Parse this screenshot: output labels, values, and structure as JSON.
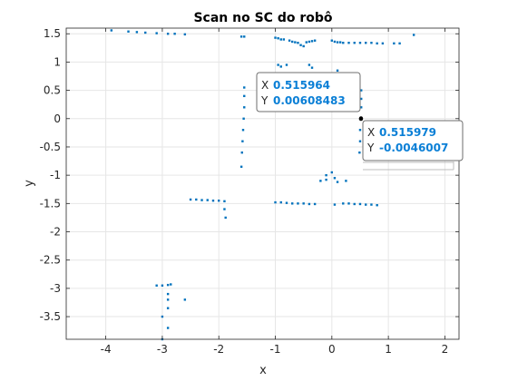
{
  "chart_data": {
    "type": "scatter",
    "title": "Scan no SC do robô",
    "xlabel": "x",
    "ylabel": "y",
    "xlim": [
      -4.7,
      2.25
    ],
    "ylim": [
      -3.9,
      1.6
    ],
    "xticks": [
      -4,
      -3,
      -2,
      -1,
      0,
      1,
      2
    ],
    "xtick_labels": [
      "-4",
      "-3",
      "-2",
      "-1",
      "0",
      "1",
      "2"
    ],
    "yticks": [
      1.5,
      1,
      0.5,
      0,
      -0.5,
      -1,
      -1.5,
      -2,
      -2.5,
      -3,
      -3.5
    ],
    "ytick_labels": [
      "1.5",
      "1",
      "0.5",
      "0",
      "-0.5",
      "-1",
      "-1.5",
      "-2",
      "-2.5",
      "-3",
      "-3.5"
    ],
    "grid": true,
    "marker_color": "#0072bd",
    "series": [
      {
        "values": [
          {
            "x": -3.9,
            "y": 1.56
          },
          {
            "x": -3.6,
            "y": 1.54
          },
          {
            "x": -3.45,
            "y": 1.53
          },
          {
            "x": -3.3,
            "y": 1.52
          },
          {
            "x": -3.1,
            "y": 1.51
          },
          {
            "x": -2.9,
            "y": 1.5
          },
          {
            "x": -2.78,
            "y": 1.5
          },
          {
            "x": -2.6,
            "y": 1.49
          },
          {
            "x": -1.6,
            "y": 1.45
          },
          {
            "x": -1.55,
            "y": 1.45
          },
          {
            "x": -1.0,
            "y": 1.43
          },
          {
            "x": -0.95,
            "y": 1.42
          },
          {
            "x": -0.9,
            "y": 1.4
          },
          {
            "x": -0.85,
            "y": 1.4
          },
          {
            "x": -0.75,
            "y": 1.38
          },
          {
            "x": -0.7,
            "y": 1.36
          },
          {
            "x": -0.65,
            "y": 1.35
          },
          {
            "x": -0.6,
            "y": 1.34
          },
          {
            "x": -0.55,
            "y": 1.3
          },
          {
            "x": -0.5,
            "y": 1.28
          },
          {
            "x": -0.45,
            "y": 1.35
          },
          {
            "x": -0.4,
            "y": 1.36
          },
          {
            "x": -0.35,
            "y": 1.37
          },
          {
            "x": -0.3,
            "y": 1.38
          },
          {
            "x": 0.0,
            "y": 1.38
          },
          {
            "x": 0.05,
            "y": 1.36
          },
          {
            "x": 0.1,
            "y": 1.35
          },
          {
            "x": 0.15,
            "y": 1.35
          },
          {
            "x": 0.2,
            "y": 1.34
          },
          {
            "x": 0.3,
            "y": 1.34
          },
          {
            "x": 0.4,
            "y": 1.34
          },
          {
            "x": 0.5,
            "y": 1.34
          },
          {
            "x": 0.6,
            "y": 1.34
          },
          {
            "x": 0.7,
            "y": 1.34
          },
          {
            "x": 0.8,
            "y": 1.33
          },
          {
            "x": 0.9,
            "y": 1.33
          },
          {
            "x": 1.1,
            "y": 1.33
          },
          {
            "x": 1.2,
            "y": 1.33
          },
          {
            "x": 1.45,
            "y": 1.48
          },
          {
            "x": -0.95,
            "y": 0.95
          },
          {
            "x": -0.9,
            "y": 0.92
          },
          {
            "x": -0.8,
            "y": 0.95
          },
          {
            "x": -0.4,
            "y": 0.95
          },
          {
            "x": -0.35,
            "y": 0.9
          },
          {
            "x": 0.1,
            "y": 0.85
          },
          {
            "x": -1.55,
            "y": 0.55
          },
          {
            "x": -1.55,
            "y": 0.4
          },
          {
            "x": -1.55,
            "y": 0.2
          },
          {
            "x": -1.56,
            "y": 0.0
          },
          {
            "x": -1.57,
            "y": -0.2
          },
          {
            "x": -1.58,
            "y": -0.4
          },
          {
            "x": -1.59,
            "y": -0.6
          },
          {
            "x": -1.6,
            "y": -0.85
          },
          {
            "x": 0.52,
            "y": 0.5
          },
          {
            "x": 0.52,
            "y": 0.35
          },
          {
            "x": 0.52,
            "y": 0.2
          },
          {
            "x": 0.515964,
            "y": 0.00608483
          },
          {
            "x": 0.515979,
            "y": -0.0046007
          },
          {
            "x": 0.5,
            "y": -0.2
          },
          {
            "x": 0.5,
            "y": -0.4
          },
          {
            "x": 0.49,
            "y": -0.6
          },
          {
            "x": -0.2,
            "y": -1.1
          },
          {
            "x": -0.1,
            "y": -1.0
          },
          {
            "x": 0.0,
            "y": -0.95
          },
          {
            "x": 0.05,
            "y": -1.05
          },
          {
            "x": -0.1,
            "y": -1.08
          },
          {
            "x": 0.1,
            "y": -1.12
          },
          {
            "x": 0.25,
            "y": -1.1
          },
          {
            "x": -2.5,
            "y": -1.43
          },
          {
            "x": -2.4,
            "y": -1.43
          },
          {
            "x": -2.3,
            "y": -1.44
          },
          {
            "x": -2.2,
            "y": -1.44
          },
          {
            "x": -2.1,
            "y": -1.45
          },
          {
            "x": -2.0,
            "y": -1.45
          },
          {
            "x": -1.9,
            "y": -1.46
          },
          {
            "x": -1.9,
            "y": -1.6
          },
          {
            "x": -1.88,
            "y": -1.75
          },
          {
            "x": -1.0,
            "y": -1.48
          },
          {
            "x": -0.9,
            "y": -1.48
          },
          {
            "x": -0.8,
            "y": -1.49
          },
          {
            "x": -0.7,
            "y": -1.5
          },
          {
            "x": -0.6,
            "y": -1.5
          },
          {
            "x": -0.5,
            "y": -1.5
          },
          {
            "x": -0.4,
            "y": -1.51
          },
          {
            "x": -0.3,
            "y": -1.51
          },
          {
            "x": 0.05,
            "y": -1.52
          },
          {
            "x": 0.2,
            "y": -1.5
          },
          {
            "x": 0.3,
            "y": -1.5
          },
          {
            "x": 0.4,
            "y": -1.51
          },
          {
            "x": 0.5,
            "y": -1.51
          },
          {
            "x": 0.6,
            "y": -1.52
          },
          {
            "x": 0.7,
            "y": -1.52
          },
          {
            "x": 0.8,
            "y": -1.53
          },
          {
            "x": -3.1,
            "y": -2.95
          },
          {
            "x": -3.0,
            "y": -2.95
          },
          {
            "x": -2.9,
            "y": -2.94
          },
          {
            "x": -2.85,
            "y": -2.93
          },
          {
            "x": -2.9,
            "y": -3.1
          },
          {
            "x": -2.9,
            "y": -3.2
          },
          {
            "x": -2.6,
            "y": -3.2
          },
          {
            "x": -2.9,
            "y": -3.35
          },
          {
            "x": -3.0,
            "y": -3.5
          },
          {
            "x": -2.9,
            "y": -3.7
          },
          {
            "x": -3.0,
            "y": -3.9
          }
        ]
      }
    ],
    "datatips": [
      {
        "x_label": "X",
        "x_value": "0.515964",
        "y_label": "Y",
        "y_value": "0.00608483",
        "x": 0.515964,
        "y": 0.00608483
      },
      {
        "x_label": "X",
        "x_value": "0.515979",
        "y_label": "Y",
        "y_value": "-0.0046007",
        "x": 0.515979,
        "y": -0.0046007
      }
    ]
  }
}
